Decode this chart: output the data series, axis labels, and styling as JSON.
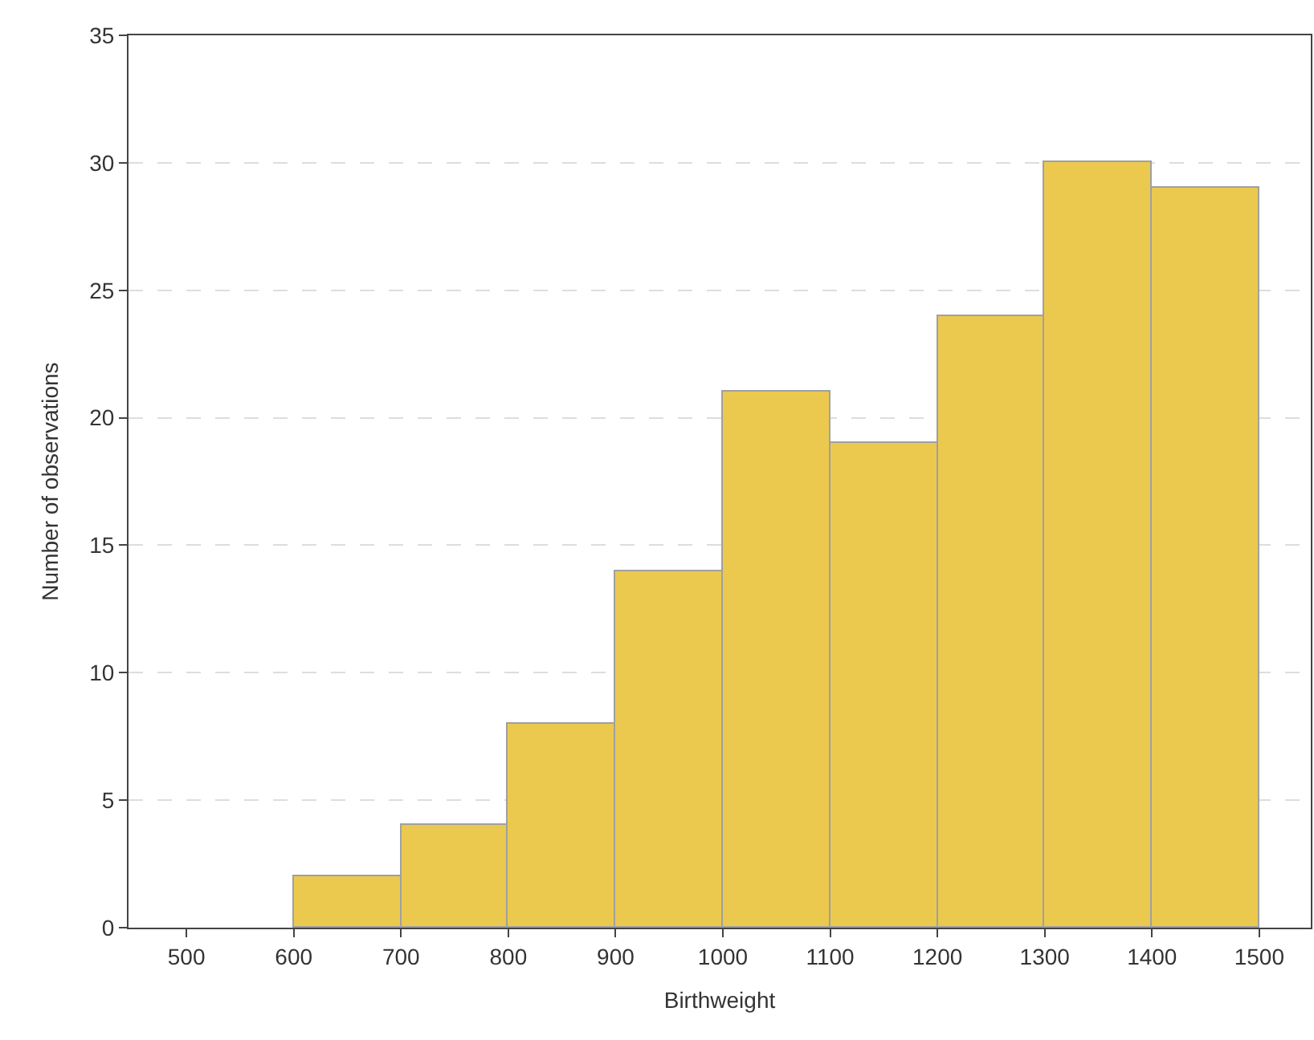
{
  "chart_data": {
    "type": "histogram",
    "xlabel": "Birthweight",
    "ylabel": "Number of observations",
    "bins": [
      600,
      700,
      800,
      900,
      1000,
      1100,
      1200,
      1300,
      1400,
      1500
    ],
    "values": [
      2,
      4,
      8,
      14,
      21,
      19,
      24,
      30,
      29
    ],
    "color": "#ebc94f",
    "xlim": [
      446,
      1548
    ],
    "xticks": [
      500,
      600,
      700,
      800,
      900,
      1000,
      1100,
      1200,
      1300,
      1400,
      1500
    ],
    "ylim": [
      0,
      35
    ],
    "yticks": [
      0,
      5,
      10,
      15,
      20,
      25,
      30,
      35
    ],
    "grid": "y"
  }
}
